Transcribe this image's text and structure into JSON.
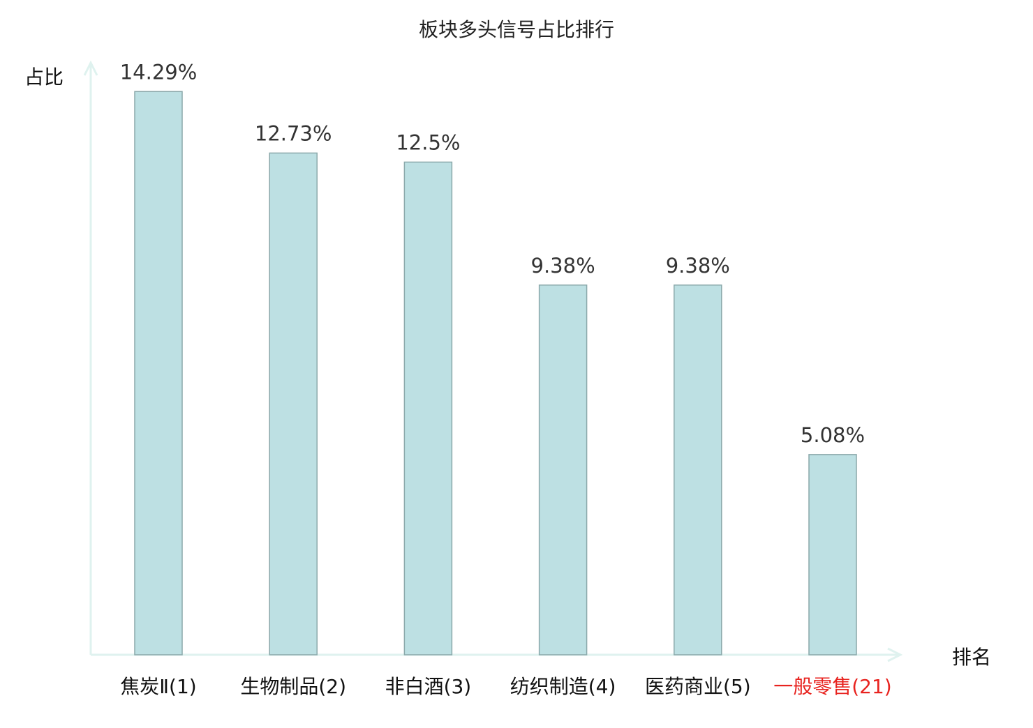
{
  "chart_data": {
    "type": "bar",
    "title": "板块多头信号占比排行",
    "xlabel": "排名",
    "ylabel": "占比",
    "categories": [
      "焦炭Ⅱ(1)",
      "生物制品(2)",
      "非白酒(3)",
      "纺织制造(4)",
      "医药商业(5)",
      "一般零售(21)"
    ],
    "values": [
      14.29,
      12.73,
      12.5,
      9.38,
      9.38,
      5.08
    ],
    "value_labels": [
      "14.29%",
      "12.73%",
      "12.5%",
      "9.38%",
      "9.38%",
      "5.08%"
    ],
    "highlight_index": 5,
    "ylim": [
      0,
      15.02
    ],
    "grid": false,
    "colors": {
      "bar_fill": "#bde0e3",
      "bar_stroke": "#8aa8aa",
      "axis": "#dff2ef",
      "text": "#333333",
      "highlight": "#e8231f"
    }
  }
}
